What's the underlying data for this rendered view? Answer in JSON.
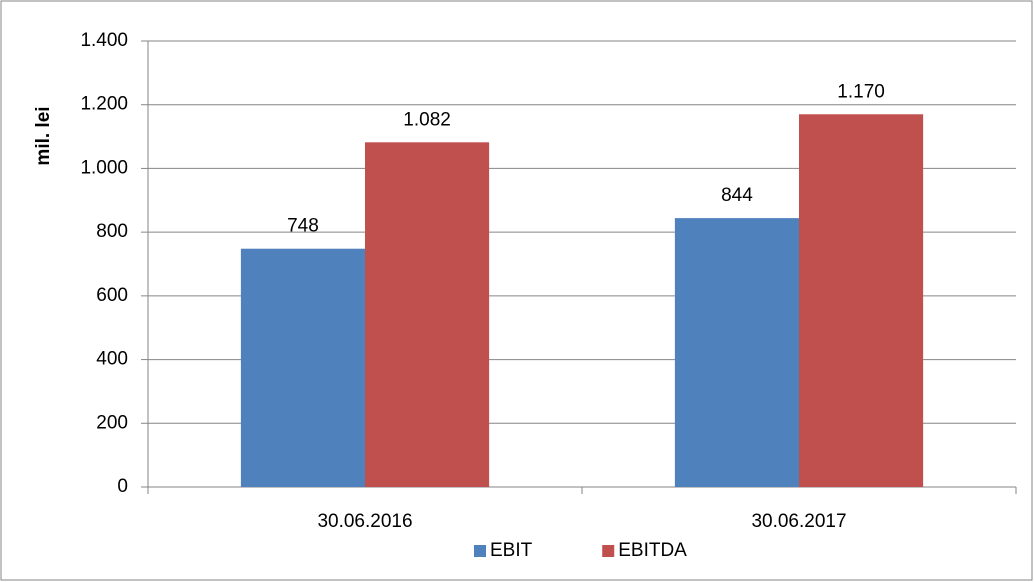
{
  "chart_data": {
    "type": "bar",
    "y_label": "mil. lei",
    "categories": [
      "30.06.2016",
      "30.06.2017"
    ],
    "series": [
      {
        "name": "EBIT",
        "color": "#4f81bd",
        "values": [
          748,
          844
        ],
        "value_labels": [
          "748",
          "844"
        ]
      },
      {
        "name": "EBITDA",
        "color": "#c0504d",
        "values": [
          1082,
          1170
        ],
        "value_labels": [
          "1.082",
          "1.170"
        ]
      }
    ],
    "ylim": [
      0,
      1400
    ],
    "yticks": [
      0,
      200,
      400,
      600,
      800,
      {
        "value": 1000,
        "label": "1.000"
      },
      {
        "value": 1200,
        "label": "1.200"
      },
      {
        "value": 1400,
        "label": "1.400"
      }
    ],
    "grid": true,
    "legend": "bottom"
  }
}
